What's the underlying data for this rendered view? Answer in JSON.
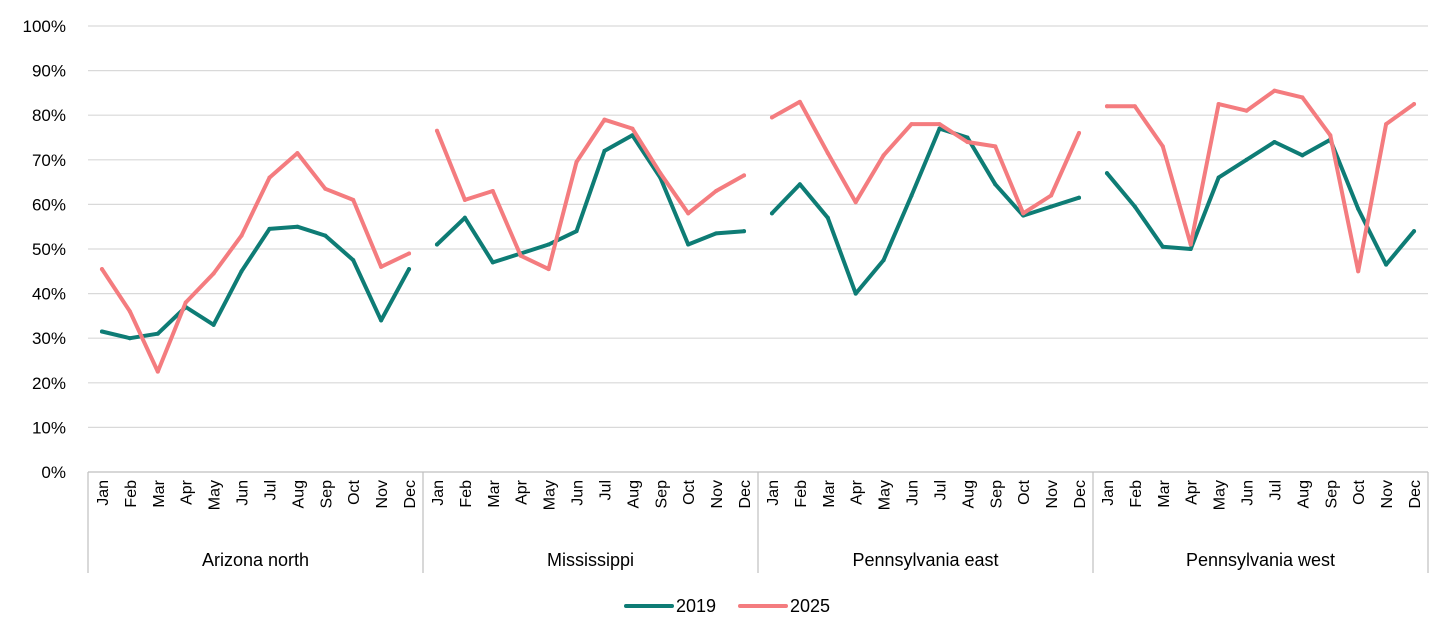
{
  "chart_data": {
    "type": "line",
    "title": "",
    "xlabel": "",
    "ylabel": "",
    "ylim": [
      0,
      100
    ],
    "y_ticks": [
      "0%",
      "10%",
      "20%",
      "30%",
      "40%",
      "50%",
      "60%",
      "70%",
      "80%",
      "90%",
      "100%"
    ],
    "grid": true,
    "legend_position": "bottom",
    "months": [
      "Jan",
      "Feb",
      "Mar",
      "Apr",
      "May",
      "Jun",
      "Jul",
      "Aug",
      "Sep",
      "Oct",
      "Nov",
      "Dec"
    ],
    "groups": [
      "Arizona north",
      "Mississippi",
      "Pennsylvania east",
      "Pennsylvania west"
    ],
    "series": [
      {
        "name": "2019",
        "color": "#0e7c75",
        "values": [
          [
            31.5,
            30,
            31,
            37,
            33,
            45,
            54.5,
            55,
            53,
            47.5,
            34,
            45.5
          ],
          [
            51,
            57,
            47,
            49,
            51,
            54,
            72,
            75.5,
            66,
            51,
            53.5,
            54
          ],
          [
            58,
            64.5,
            57,
            40,
            47.5,
            62,
            77,
            75,
            64.5,
            57.5,
            59.5,
            61.5
          ],
          [
            67,
            59.5,
            50.5,
            50,
            66,
            70,
            74,
            71,
            74.5,
            59,
            46.5,
            54
          ]
        ]
      },
      {
        "name": "2025",
        "color": "#f47c7f",
        "values": [
          [
            45.5,
            36,
            22.5,
            38,
            44.5,
            53,
            66,
            71.5,
            63.5,
            61,
            46,
            49
          ],
          [
            76.5,
            61,
            63,
            48.5,
            45.5,
            69.5,
            79,
            77,
            67,
            58,
            63,
            66.5
          ],
          [
            79.5,
            83,
            71.5,
            60.5,
            71,
            78,
            78,
            74,
            73,
            58,
            62,
            76
          ],
          [
            82,
            82,
            73,
            51,
            82.5,
            81,
            85.5,
            84,
            75.5,
            45,
            78,
            82.5
          ]
        ]
      }
    ]
  }
}
